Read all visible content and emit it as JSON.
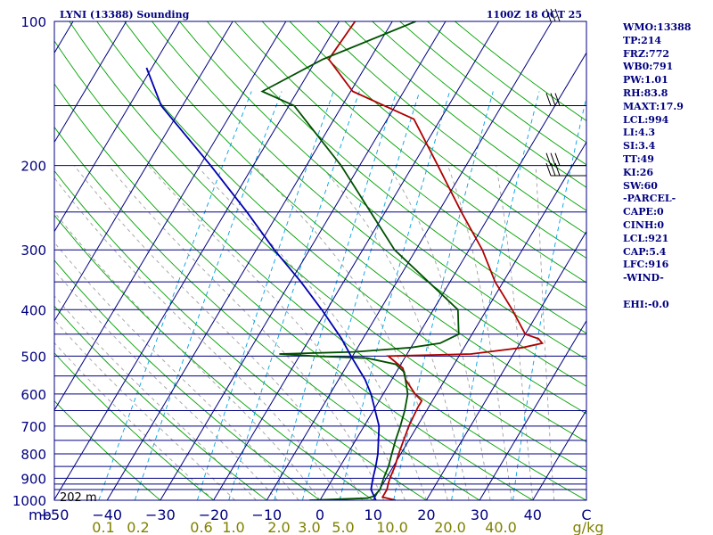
{
  "header": {
    "station": "LYNI (13388) Sounding",
    "datetime": "1100Z 18 OCT 25"
  },
  "indices": [
    "WMO:13388",
    "TP:214",
    "FRZ:772",
    "WB0:791",
    "PW:1.01",
    "RH:83.8",
    "MAXT:17.9",
    "LCL:994",
    "LI:4.3",
    "SI:3.4",
    "TT:49",
    "KI:26",
    "SW:60",
    "-PARCEL-",
    "CAPE:0",
    "CINH:0",
    "LCL:921",
    "CAP:5.4",
    "LFC:916",
    "-WIND-",
    "",
    "EHI:-0.0"
  ],
  "surface_height_label": "202 m",
  "colors": {
    "frame": "#000080",
    "isobar": "#000080",
    "isotherm": "#000080",
    "dry_adiabat": "#00a000",
    "moist_adiabat": "#a0a0a0",
    "mixing_ratio": "#00a0e0",
    "temperature": "#b00000",
    "dewpoint": "#005000",
    "parcel": "#0000b0",
    "mixing_label": "#808000",
    "wind_barb": "#000000"
  },
  "chart_data": {
    "type": "skew-t log-p sounding",
    "title": "LYNI (13388) Sounding",
    "xlabel": "C",
    "ylabel": "mb",
    "pressure_ticks": [
      100,
      200,
      300,
      400,
      500,
      600,
      700,
      800,
      900,
      1000
    ],
    "isobars": [
      100,
      150,
      200,
      250,
      300,
      350,
      400,
      450,
      500,
      550,
      600,
      650,
      700,
      750,
      800,
      850,
      900,
      925,
      950,
      1000
    ],
    "temperature_ticks": [
      -50,
      -40,
      -30,
      -20,
      -10,
      0,
      10,
      20,
      30,
      40,
      "C"
    ],
    "temperature_range_surface_C": [
      -50,
      50
    ],
    "pressure_range_mb": [
      100,
      1000
    ],
    "mixing_ratio_labels": [
      "0.1",
      "0.2",
      "0.6",
      "1.0",
      "2.0",
      "3.0",
      "5.0",
      "10.0",
      "20.0",
      "40.0",
      "g/kg"
    ],
    "mixing_ratio_lines_gkg": [
      0.1,
      0.2,
      0.6,
      1.0,
      2.0,
      3.0,
      5.0,
      10.0,
      20.0,
      40.0
    ],
    "series": [
      {
        "name": "Temperature",
        "points": [
          [
            1000,
            14.2
          ],
          [
            985,
            11.4
          ],
          [
            950,
            11.4
          ],
          [
            925,
            11.0
          ],
          [
            900,
            10.7
          ],
          [
            850,
            10.3
          ],
          [
            800,
            9.6
          ],
          [
            700,
            8.4
          ],
          [
            640,
            8.0
          ],
          [
            620,
            8.0
          ],
          [
            600,
            6.0
          ],
          [
            560,
            2.6
          ],
          [
            530,
            0.8
          ],
          [
            500,
            -3.3
          ],
          [
            495,
            12.0
          ],
          [
            490,
            15.0
          ],
          [
            480,
            21.0
          ],
          [
            470,
            24.2
          ],
          [
            460,
            23.0
          ],
          [
            450,
            20.0
          ],
          [
            400,
            14.8
          ],
          [
            350,
            8.5
          ],
          [
            300,
            2.5
          ],
          [
            250,
            -5.7
          ],
          [
            200,
            -15.3
          ],
          [
            160,
            -25.0
          ],
          [
            140,
            -39.6
          ],
          [
            120,
            -47.7
          ],
          [
            100,
            -47.0
          ]
        ]
      },
      {
        "name": "Dewpoint",
        "points": [
          [
            1000,
            -2.0
          ],
          [
            990,
            8.7
          ],
          [
            980,
            9.7
          ],
          [
            950,
            10.1
          ],
          [
            900,
            9.5
          ],
          [
            850,
            9.1
          ],
          [
            800,
            8.3
          ],
          [
            750,
            7.5
          ],
          [
            700,
            6.8
          ],
          [
            650,
            5.9
          ],
          [
            600,
            4.6
          ],
          [
            540,
            1.5
          ],
          [
            520,
            -1.0
          ],
          [
            505,
            -7.0
          ],
          [
            500,
            -17.3
          ],
          [
            495,
            -24.0
          ],
          [
            490,
            -10.0
          ],
          [
            480,
            0.0
          ],
          [
            470,
            5.0
          ],
          [
            450,
            7.5
          ],
          [
            400,
            4.6
          ],
          [
            300,
            -14.0
          ],
          [
            200,
            -33.5
          ],
          [
            150,
            -49.0
          ],
          [
            140,
            -56.6
          ],
          [
            120,
            -48.8
          ],
          [
            100,
            -35.6
          ]
        ]
      },
      {
        "name": "Parcel",
        "points": [
          [
            1000,
            10.5
          ],
          [
            950,
            8.4
          ],
          [
            900,
            7.5
          ],
          [
            850,
            6.7
          ],
          [
            800,
            5.7
          ],
          [
            700,
            2.8
          ],
          [
            600,
            -2.3
          ],
          [
            560,
            -5.0
          ],
          [
            500,
            -10.3
          ],
          [
            460,
            -14.0
          ],
          [
            400,
            -21.0
          ],
          [
            350,
            -28.0
          ],
          [
            300,
            -36.6
          ],
          [
            250,
            -46.0
          ],
          [
            200,
            -58.0
          ],
          [
            150,
            -74.0
          ],
          [
            125,
            -81.0
          ]
        ]
      }
    ],
    "wind_barb_levels_mb": [
      100,
      150,
      200,
      210
    ]
  }
}
